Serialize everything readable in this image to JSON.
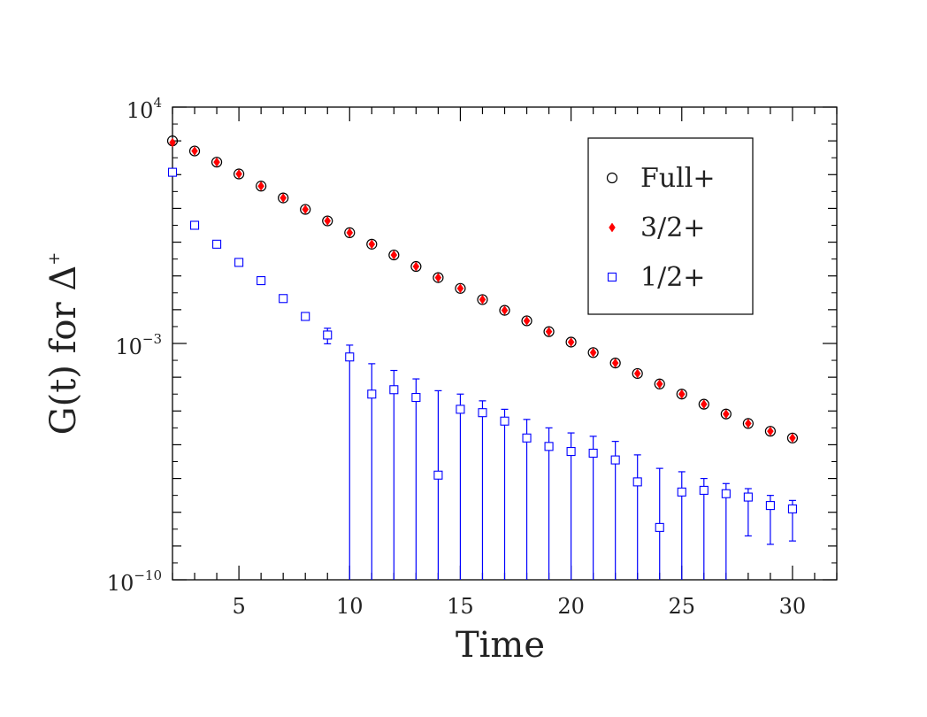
{
  "chart_data": {
    "type": "scatter",
    "xlabel": "Time",
    "ylabel_main": "G(t) for Δ",
    "ylabel_sup": "+",
    "x_ticks": [
      5,
      10,
      15,
      20,
      25,
      30
    ],
    "xlim": [
      2,
      32
    ],
    "y_scale": "log",
    "y_log_range": [
      -10,
      4
    ],
    "y_tick_labels": [
      {
        "base": "10",
        "exp": "4",
        "log": 4
      },
      {
        "base": "10",
        "exp": "−3",
        "log": -3
      },
      {
        "base": "10",
        "exp": "−10",
        "log": -10
      }
    ],
    "legend_placement": "top-right",
    "series": [
      {
        "name": "Full+",
        "marker": "circle",
        "color": "#000000",
        "points": [
          {
            "x": 2,
            "log_y": 3.0
          },
          {
            "x": 3,
            "log_y": 2.7
          },
          {
            "x": 4,
            "log_y": 2.37
          },
          {
            "x": 5,
            "log_y": 2.02
          },
          {
            "x": 6,
            "log_y": 1.66
          },
          {
            "x": 7,
            "log_y": 1.31
          },
          {
            "x": 8,
            "log_y": 0.97
          },
          {
            "x": 9,
            "log_y": 0.63
          },
          {
            "x": 10,
            "log_y": 0.28
          },
          {
            "x": 11,
            "log_y": -0.06
          },
          {
            "x": 12,
            "log_y": -0.38
          },
          {
            "x": 13,
            "log_y": -0.72
          },
          {
            "x": 14,
            "log_y": -1.05
          },
          {
            "x": 15,
            "log_y": -1.37
          },
          {
            "x": 16,
            "log_y": -1.7
          },
          {
            "x": 17,
            "log_y": -2.02
          },
          {
            "x": 18,
            "log_y": -2.33
          },
          {
            "x": 19,
            "log_y": -2.65
          },
          {
            "x": 20,
            "log_y": -2.96
          },
          {
            "x": 21,
            "log_y": -3.27
          },
          {
            "x": 22,
            "log_y": -3.58
          },
          {
            "x": 23,
            "log_y": -3.89
          },
          {
            "x": 24,
            "log_y": -4.2
          },
          {
            "x": 25,
            "log_y": -4.5
          },
          {
            "x": 26,
            "log_y": -4.8
          },
          {
            "x": 27,
            "log_y": -5.09
          },
          {
            "x": 28,
            "log_y": -5.37
          },
          {
            "x": 29,
            "log_y": -5.6
          },
          {
            "x": 30,
            "log_y": -5.8
          }
        ]
      },
      {
        "name": "3/2+",
        "marker": "diamond",
        "color": "#ff0000",
        "points": [
          {
            "x": 2,
            "log_y": 2.95
          },
          {
            "x": 3,
            "log_y": 2.7
          },
          {
            "x": 4,
            "log_y": 2.37
          },
          {
            "x": 5,
            "log_y": 2.02
          },
          {
            "x": 6,
            "log_y": 1.66
          },
          {
            "x": 7,
            "log_y": 1.31
          },
          {
            "x": 8,
            "log_y": 0.97
          },
          {
            "x": 9,
            "log_y": 0.63
          },
          {
            "x": 10,
            "log_y": 0.28
          },
          {
            "x": 11,
            "log_y": -0.06
          },
          {
            "x": 12,
            "log_y": -0.38
          },
          {
            "x": 13,
            "log_y": -0.72
          },
          {
            "x": 14,
            "log_y": -1.05
          },
          {
            "x": 15,
            "log_y": -1.37
          },
          {
            "x": 16,
            "log_y": -1.7
          },
          {
            "x": 17,
            "log_y": -2.02
          },
          {
            "x": 18,
            "log_y": -2.33
          },
          {
            "x": 19,
            "log_y": -2.65
          },
          {
            "x": 20,
            "log_y": -2.96
          },
          {
            "x": 21,
            "log_y": -3.27
          },
          {
            "x": 22,
            "log_y": -3.58
          },
          {
            "x": 23,
            "log_y": -3.89
          },
          {
            "x": 24,
            "log_y": -4.2
          },
          {
            "x": 25,
            "log_y": -4.5
          },
          {
            "x": 26,
            "log_y": -4.8
          },
          {
            "x": 27,
            "log_y": -5.09
          },
          {
            "x": 28,
            "log_y": -5.37
          },
          {
            "x": 29,
            "log_y": -5.6
          },
          {
            "x": 30,
            "log_y": -5.8
          }
        ]
      },
      {
        "name": "1/2+",
        "marker": "square",
        "color": "#0000ff",
        "points": [
          {
            "x": 2,
            "log_y": 2.07
          },
          {
            "x": 3,
            "log_y": 0.5
          },
          {
            "x": 4,
            "log_y": -0.06
          },
          {
            "x": 5,
            "log_y": -0.6
          },
          {
            "x": 6,
            "log_y": -1.14
          },
          {
            "x": 7,
            "log_y": -1.67
          },
          {
            "x": 8,
            "log_y": -2.2
          },
          {
            "x": 9,
            "log_y": -2.75,
            "err_lo": -3.01,
            "err_hi": -2.55
          },
          {
            "x": 10,
            "log_y": -3.4,
            "err_lo": -10,
            "err_hi": -3.05
          },
          {
            "x": 11,
            "log_y": -4.5,
            "err_lo": -10,
            "err_hi": -3.6
          },
          {
            "x": 12,
            "log_y": -4.37,
            "err_lo": -10,
            "err_hi": -3.8
          },
          {
            "x": 13,
            "log_y": -4.6,
            "err_lo": -10,
            "err_hi": -4.05
          },
          {
            "x": 14,
            "log_y": -6.9,
            "err_lo": -10,
            "err_hi": -4.4
          },
          {
            "x": 15,
            "log_y": -4.95,
            "err_lo": -10,
            "err_hi": -4.5
          },
          {
            "x": 16,
            "log_y": -5.05,
            "err_lo": -10,
            "err_hi": -4.7
          },
          {
            "x": 17,
            "log_y": -5.3,
            "err_lo": -10,
            "err_hi": -4.95
          },
          {
            "x": 18,
            "log_y": -5.8,
            "err_lo": -10,
            "err_hi": -5.25
          },
          {
            "x": 19,
            "log_y": -6.05,
            "err_lo": -10,
            "err_hi": -5.5
          },
          {
            "x": 20,
            "log_y": -6.2,
            "err_lo": -10,
            "err_hi": -5.65
          },
          {
            "x": 21,
            "log_y": -6.25,
            "err_lo": -10,
            "err_hi": -5.75
          },
          {
            "x": 22,
            "log_y": -6.45,
            "err_lo": -10,
            "err_hi": -5.9
          },
          {
            "x": 23,
            "log_y": -7.1,
            "err_lo": -10,
            "err_hi": -6.3
          },
          {
            "x": 24,
            "log_y": -8.45,
            "err_lo": -10,
            "err_hi": -6.7
          },
          {
            "x": 25,
            "log_y": -7.4,
            "err_lo": -10,
            "err_hi": -6.8
          },
          {
            "x": 26,
            "log_y": -7.35,
            "err_lo": -10,
            "err_hi": -7.0
          },
          {
            "x": 27,
            "log_y": -7.45,
            "err_lo": -10,
            "err_hi": -7.15
          },
          {
            "x": 28,
            "log_y": -7.55,
            "err_lo": -8.7,
            "err_hi": -7.3
          },
          {
            "x": 29,
            "log_y": -7.8,
            "err_lo": -8.95,
            "err_hi": -7.5
          },
          {
            "x": 30,
            "log_y": -7.9,
            "err_lo": -8.85,
            "err_hi": -7.65
          }
        ]
      }
    ]
  }
}
